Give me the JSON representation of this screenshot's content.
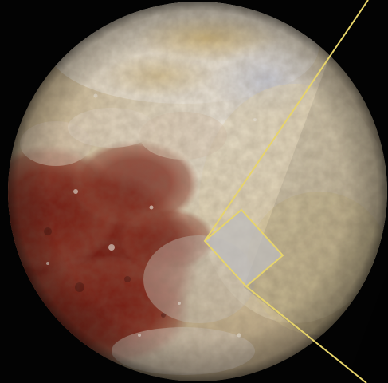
{
  "scene": {
    "subject": "dwarf-planet",
    "colors": {
      "space": "#030303",
      "terrain_light": "#d9cbb0",
      "terrain_pale": "#e6dfd2",
      "terrain_tan": "#c9b27a",
      "terrain_red": "#7a1e14",
      "terrain_dark_red": "#4a0f0b",
      "terrain_blue_gray": "#b9bcc6",
      "highlight_box_fill": "#bdbcbc",
      "outline": "#e7d46a"
    },
    "overlay": {
      "shape": "zoom-inset",
      "style": "yellow outline"
    }
  }
}
